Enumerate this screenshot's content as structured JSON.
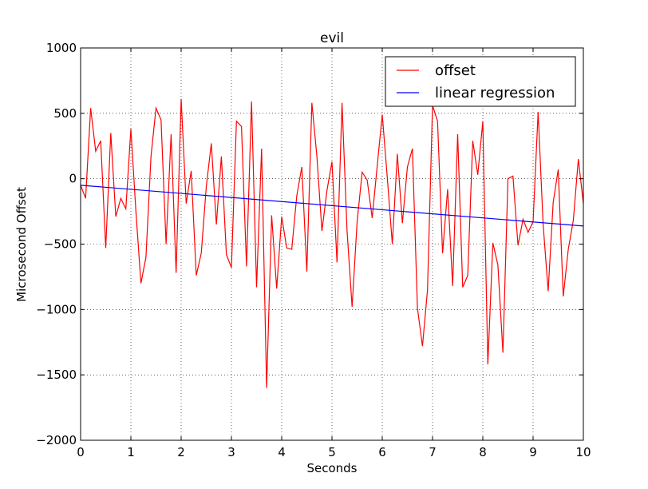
{
  "chart_data": {
    "type": "line",
    "title": "evil",
    "xlabel": "Seconds",
    "ylabel": "Microsecond Offset",
    "xlim": [
      0,
      10
    ],
    "ylim": [
      -2000,
      1000
    ],
    "xticks": [
      0,
      1,
      2,
      3,
      4,
      5,
      6,
      7,
      8,
      9,
      10
    ],
    "yticks": [
      -2000,
      -1500,
      -1000,
      -500,
      0,
      500,
      1000
    ],
    "grid": true,
    "legend_position": "upper-right",
    "series": [
      {
        "name": "offset",
        "color": "#ff0000",
        "x": [
          0.0,
          0.1,
          0.2,
          0.3,
          0.4,
          0.5,
          0.6,
          0.7,
          0.8,
          0.9,
          1.0,
          1.1,
          1.2,
          1.3,
          1.4,
          1.5,
          1.6,
          1.7,
          1.8,
          1.9,
          2.0,
          2.1,
          2.2,
          2.3,
          2.4,
          2.5,
          2.6,
          2.7,
          2.8,
          2.9,
          3.0,
          3.1,
          3.2,
          3.3,
          3.4,
          3.5,
          3.6,
          3.7,
          3.8,
          3.9,
          4.0,
          4.1,
          4.2,
          4.3,
          4.4,
          4.5,
          4.6,
          4.7,
          4.8,
          4.9,
          5.0,
          5.1,
          5.2,
          5.3,
          5.4,
          5.5,
          5.6,
          5.7,
          5.8,
          5.9,
          6.0,
          6.1,
          6.2,
          6.3,
          6.4,
          6.5,
          6.6,
          6.7,
          6.8,
          6.9,
          7.0,
          7.1,
          7.2,
          7.3,
          7.4,
          7.5,
          7.6,
          7.7,
          7.8,
          7.9,
          8.0,
          8.1,
          8.2,
          8.3,
          8.4,
          8.5,
          8.6,
          8.7,
          8.8,
          8.9,
          9.0,
          9.1,
          9.2,
          9.3,
          9.4,
          9.5,
          9.6,
          9.7,
          9.8,
          9.9,
          10.0
        ],
        "y": [
          -50,
          -150,
          540,
          210,
          290,
          -530,
          350,
          -290,
          -150,
          -230,
          380,
          -250,
          -800,
          -600,
          170,
          540,
          450,
          -500,
          340,
          -720,
          610,
          -190,
          60,
          -740,
          -570,
          -60,
          270,
          -350,
          170,
          -580,
          -680,
          440,
          400,
          -670,
          590,
          -830,
          230,
          -1600,
          -280,
          -840,
          -290,
          -530,
          -540,
          -130,
          90,
          -710,
          580,
          170,
          -400,
          -90,
          130,
          -640,
          580,
          -400,
          -980,
          -330,
          50,
          -10,
          -300,
          100,
          490,
          10,
          -500,
          190,
          -340,
          90,
          230,
          -990,
          -1280,
          -850,
          560,
          440,
          -570,
          -80,
          -820,
          340,
          -830,
          -740,
          290,
          30,
          440,
          -1420,
          -490,
          -660,
          -1330,
          0,
          20,
          -510,
          -310,
          -410,
          -330,
          510,
          -350,
          -860,
          -180,
          70,
          -900,
          -540,
          -320,
          150,
          -190
        ]
      },
      {
        "name": "linear regression",
        "color": "#0000ff",
        "x": [
          0,
          10
        ],
        "y": [
          -50,
          -362
        ]
      }
    ]
  }
}
